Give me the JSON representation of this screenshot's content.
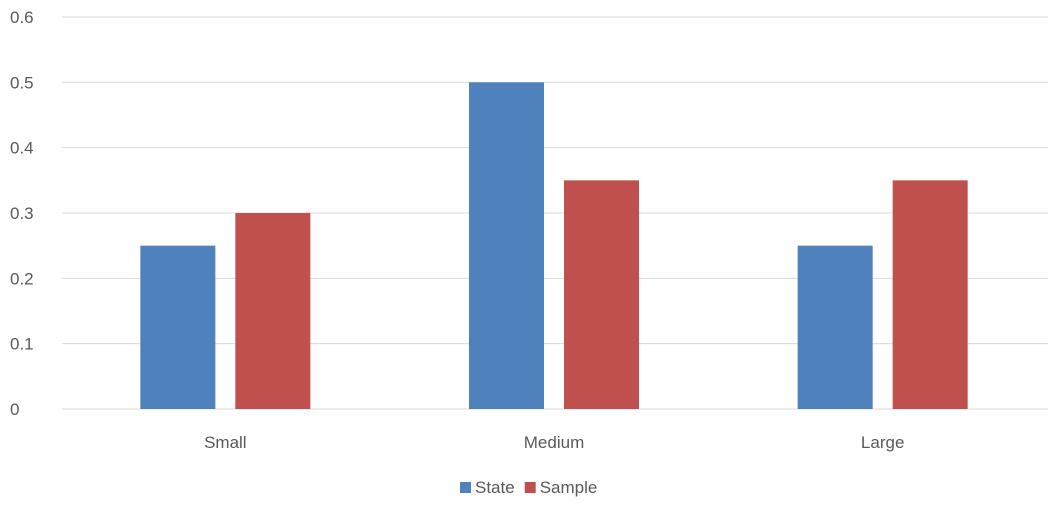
{
  "chart_data": {
    "type": "bar",
    "categories": [
      "Small",
      "Medium",
      "Large"
    ],
    "series": [
      {
        "name": "State",
        "values": [
          0.25,
          0.5,
          0.25
        ],
        "color": "#4F81BD"
      },
      {
        "name": "Sample",
        "values": [
          0.3,
          0.35,
          0.35
        ],
        "color": "#C0504D"
      }
    ],
    "yticks": [
      "0",
      "0.1",
      "0.2",
      "0.3",
      "0.4",
      "0.5",
      "0.6"
    ],
    "ylim": [
      0,
      0.6
    ],
    "grid": true,
    "legend_position": "bottom",
    "gridline_color": "#D9D9D9"
  }
}
